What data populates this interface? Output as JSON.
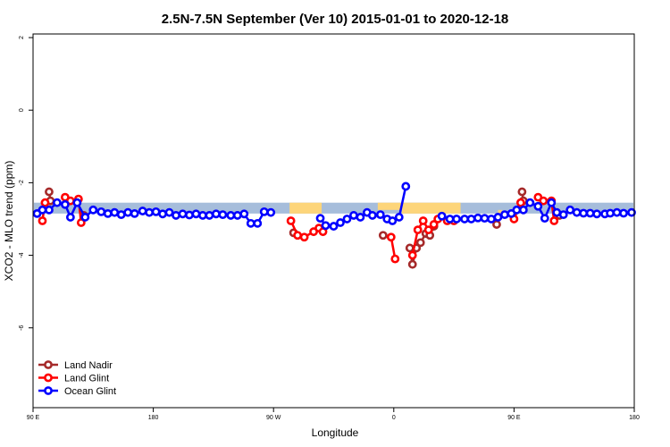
{
  "chart_data": {
    "type": "line",
    "title": "2.5N-7.5N September (Ver 10)   2015-01-01 to 2020-12-18",
    "xlabel": "Longitude",
    "ylabel": "XCO2 - MLO trend (ppm)",
    "x_unit": "degrees longitude, shown as 90 E (x=90) to 180 (x=180) wrapping through 90 W (x=270), 0 (x=360), 90 E (x=450), 180 (x=540)",
    "xlim": [
      90,
      540
    ],
    "ylim": [
      -8.2,
      2.1
    ],
    "xticks": [
      {
        "x": 90,
        "label": "90 E"
      },
      {
        "x": 180,
        "label": "180"
      },
      {
        "x": 270,
        "label": "90 W"
      },
      {
        "x": 360,
        "label": "0"
      },
      {
        "x": 450,
        "label": "90 E"
      },
      {
        "x": 540,
        "label": "180"
      }
    ],
    "yticks": [
      {
        "y": 2,
        "label": "2"
      },
      {
        "y": 0,
        "label": "0"
      },
      {
        "y": -2,
        "label": "-2"
      },
      {
        "y": -4,
        "label": "-4"
      },
      {
        "y": -6,
        "label": "-6"
      }
    ],
    "band": {
      "ocean_color": "#A6BDDB",
      "land_color": "#FDD57A",
      "y_top": -2.55,
      "y_bottom": -2.85,
      "land_segments": [
        {
          "x0": 282,
          "x1": 306,
          "y_top": -2.55,
          "y_bottom": -2.85
        },
        {
          "x0": 348,
          "x1": 366,
          "y_top": -2.55,
          "y_bottom": -2.75
        },
        {
          "x0": 366,
          "x1": 410,
          "y_top": -2.55,
          "y_bottom": -2.85
        },
        {
          "x0": 438,
          "x1": 441,
          "y_top": -2.75,
          "y_bottom": -2.85
        }
      ]
    },
    "legend": {
      "position": "bottom-left"
    },
    "series": [
      {
        "name": "Land Nadir",
        "color": "#A52A2A",
        "segments": [
          [
            [
              102,
              -2.25
            ],
            [
              103,
              -2.5
            ]
          ],
          [
            [
              128,
              -2.9
            ]
          ],
          [
            [
              285,
              -3.38
            ]
          ],
          [
            [
              352,
              -3.45
            ]
          ],
          [
            [
              372,
              -3.8
            ],
            [
              374,
              -4.25
            ],
            [
              377,
              -3.8
            ],
            [
              380,
              -3.65
            ],
            [
              384,
              -3.4
            ],
            [
              387,
              -3.45
            ],
            [
              390,
              -3.2
            ]
          ],
          [
            [
              437,
              -3.15
            ]
          ],
          [
            [
              456,
              -2.25
            ],
            [
              457,
              -2.5
            ]
          ],
          [
            [
              484,
              -2.9
            ]
          ]
        ]
      },
      {
        "name": "Land Glint",
        "color": "#FF0000",
        "segments": [
          [
            [
              97,
              -3.05
            ],
            [
              99,
              -2.55
            ]
          ],
          [
            [
              114,
              -2.4
            ],
            [
              118,
              -2.5
            ],
            [
              124,
              -2.45
            ],
            [
              126,
              -3.1
            ]
          ],
          [
            [
              283,
              -3.05
            ],
            [
              288,
              -3.45
            ],
            [
              293,
              -3.5
            ],
            [
              300,
              -3.35
            ],
            [
              304,
              -3.25
            ],
            [
              307,
              -3.35
            ]
          ],
          [
            [
              358,
              -3.5
            ],
            [
              361,
              -4.1
            ]
          ],
          [
            [
              374,
              -4.0
            ],
            [
              378,
              -3.3
            ],
            [
              382,
              -3.05
            ],
            [
              386,
              -3.3
            ],
            [
              390,
              -3.15
            ],
            [
              393,
              -3.0
            ]
          ],
          [
            [
              400,
              -3.05
            ],
            [
              405,
              -3.05
            ]
          ],
          [
            [
              450,
              -3.0
            ],
            [
              455,
              -2.55
            ]
          ],
          [
            [
              468,
              -2.4
            ],
            [
              472,
              -2.5
            ],
            [
              478,
              -2.5
            ],
            [
              480,
              -3.05
            ]
          ]
        ]
      },
      {
        "name": "Ocean Glint",
        "color": "#0000FF",
        "segments": [
          [
            [
              93,
              -2.85
            ],
            [
              97,
              -2.75
            ],
            [
              102,
              -2.75
            ],
            [
              108,
              -2.55
            ],
            [
              114,
              -2.6
            ],
            [
              118,
              -2.95
            ],
            [
              123,
              -2.55
            ],
            [
              129,
              -2.95
            ],
            [
              135,
              -2.75
            ],
            [
              141,
              -2.8
            ],
            [
              146,
              -2.85
            ],
            [
              151,
              -2.82
            ],
            [
              156,
              -2.88
            ],
            [
              161,
              -2.82
            ],
            [
              166,
              -2.85
            ],
            [
              172,
              -2.78
            ],
            [
              177,
              -2.82
            ],
            [
              182,
              -2.8
            ],
            [
              187,
              -2.86
            ],
            [
              192,
              -2.82
            ],
            [
              197,
              -2.9
            ],
            [
              202,
              -2.86
            ],
            [
              207,
              -2.89
            ],
            [
              212,
              -2.86
            ],
            [
              217,
              -2.9
            ],
            [
              222,
              -2.9
            ],
            [
              227,
              -2.86
            ],
            [
              232,
              -2.88
            ],
            [
              238,
              -2.9
            ],
            [
              243,
              -2.9
            ],
            [
              248,
              -2.86
            ],
            [
              253,
              -3.12
            ],
            [
              258,
              -3.12
            ],
            [
              263,
              -2.8
            ],
            [
              268,
              -2.82
            ]
          ],
          [
            [
              305,
              -2.98
            ],
            [
              309,
              -3.18
            ],
            [
              315,
              -3.2
            ],
            [
              320,
              -3.1
            ],
            [
              325,
              -3.0
            ],
            [
              330,
              -2.9
            ],
            [
              335,
              -2.95
            ],
            [
              340,
              -2.82
            ],
            [
              344,
              -2.9
            ],
            [
              350,
              -2.88
            ],
            [
              355,
              -3.0
            ],
            [
              359,
              -3.05
            ],
            [
              364,
              -2.95
            ],
            [
              369,
              -2.1
            ]
          ],
          [
            [
              396,
              -2.92
            ],
            [
              402,
              -3.0
            ],
            [
              407,
              -3.0
            ],
            [
              413,
              -3.0
            ],
            [
              418,
              -3.0
            ],
            [
              423,
              -2.97
            ],
            [
              428,
              -2.98
            ],
            [
              433,
              -3.0
            ],
            [
              438,
              -2.95
            ],
            [
              443,
              -2.88
            ],
            [
              448,
              -2.85
            ],
            [
              452,
              -2.75
            ],
            [
              457,
              -2.75
            ],
            [
              462,
              -2.55
            ],
            [
              468,
              -2.65
            ],
            [
              473,
              -2.98
            ],
            [
              478,
              -2.55
            ],
            [
              482,
              -2.82
            ],
            [
              487,
              -2.88
            ],
            [
              492,
              -2.75
            ],
            [
              497,
              -2.82
            ],
            [
              502,
              -2.84
            ],
            [
              507,
              -2.84
            ],
            [
              512,
              -2.86
            ],
            [
              518,
              -2.86
            ],
            [
              522,
              -2.84
            ],
            [
              527,
              -2.82
            ],
            [
              532,
              -2.84
            ],
            [
              538,
              -2.82
            ]
          ]
        ]
      }
    ]
  }
}
